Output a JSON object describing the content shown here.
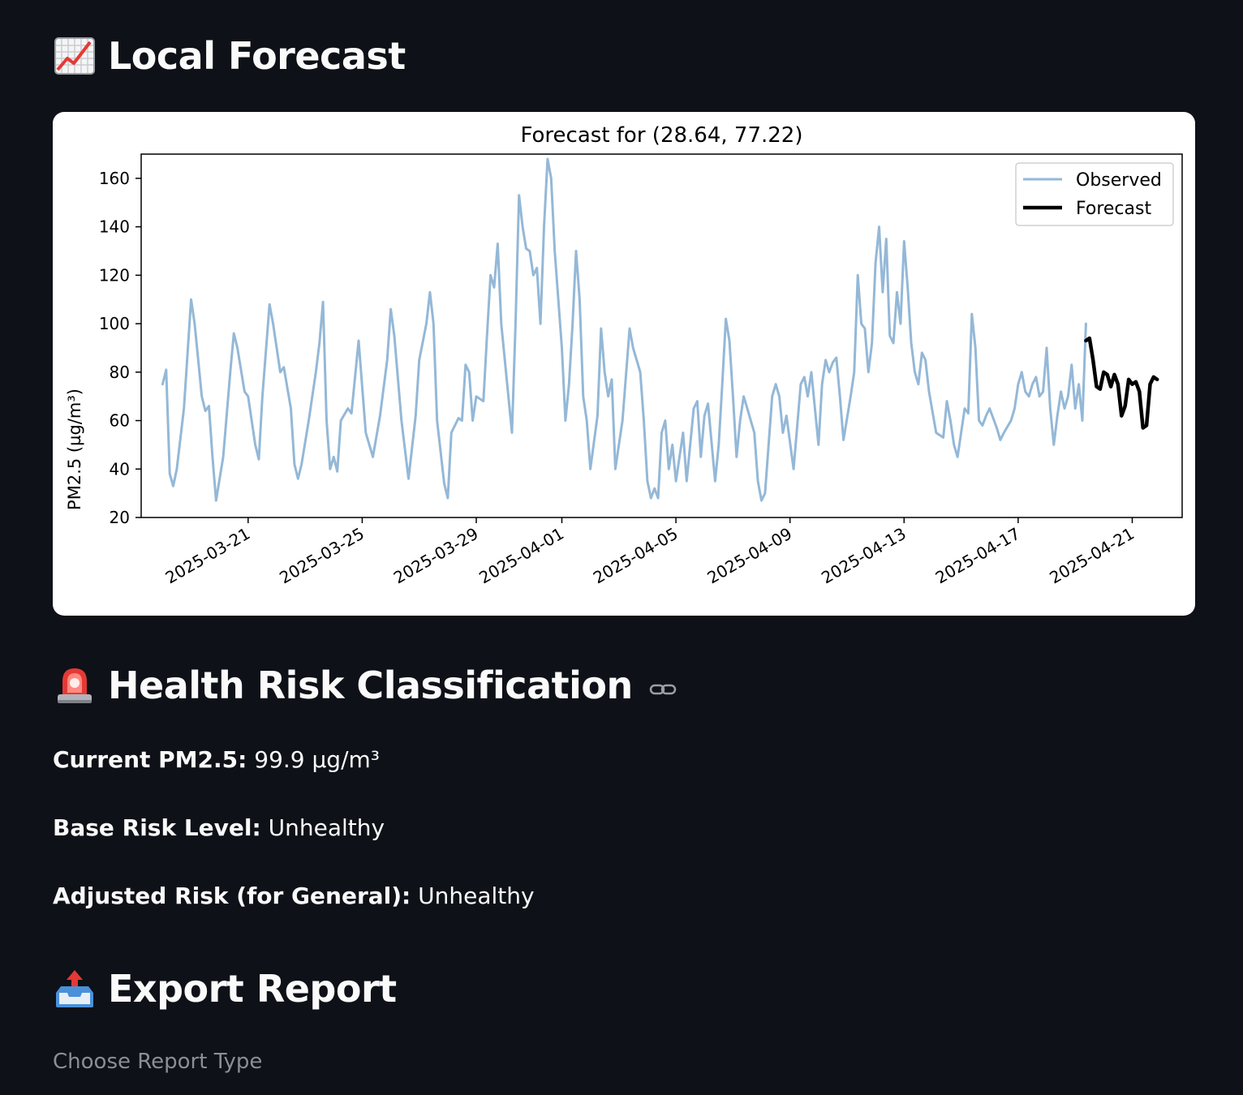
{
  "sections": {
    "forecast": {
      "icon": "chart-increasing-icon",
      "title": "Local Forecast"
    },
    "health": {
      "icon": "police-light-icon",
      "title": "Health Risk Classification",
      "anchor_icon": "link-icon"
    },
    "export": {
      "icon": "outbox-tray-icon",
      "title": "Export Report"
    }
  },
  "health_risk": {
    "current_label": "Current PM2.5:",
    "current_value": "99.9 µg/m³",
    "base_label": "Base Risk Level:",
    "base_value": "Unhealthy",
    "adjusted_label": "Adjusted Risk (for General):",
    "adjusted_value": "Unhealthy"
  },
  "export": {
    "report_type_label": "Choose Report Type"
  },
  "colors": {
    "observed": "#94b8d7",
    "forecast": "#000000",
    "background": "#0e1117",
    "card": "#ffffff"
  },
  "chart_data": {
    "type": "line",
    "title": "Forecast for (28.64, 77.22)",
    "ylabel": "PM2.5 (µg/m³)",
    "xlabel": "",
    "ylim": [
      20,
      170
    ],
    "xlim": [
      "2025-03-17T06:00",
      "2025-04-22T18:00"
    ],
    "yticks": [
      20,
      40,
      60,
      80,
      100,
      120,
      140,
      160
    ],
    "xticks": [
      "2025-03-21",
      "2025-03-25",
      "2025-03-29",
      "2025-04-01",
      "2025-04-05",
      "2025-04-09",
      "2025-04-13",
      "2025-04-17",
      "2025-04-21"
    ],
    "legend_position": "top-right",
    "grid": false,
    "series": [
      {
        "name": "Observed",
        "color": "#94b8d7",
        "points": [
          [
            "2025-03-18T00:00",
            75
          ],
          [
            "2025-03-18T03:00",
            81
          ],
          [
            "2025-03-18T06:00",
            38
          ],
          [
            "2025-03-18T09:00",
            33
          ],
          [
            "2025-03-18T12:00",
            40
          ],
          [
            "2025-03-18T18:00",
            65
          ],
          [
            "2025-03-19T00:00",
            110
          ],
          [
            "2025-03-19T03:00",
            100
          ],
          [
            "2025-03-19T09:00",
            70
          ],
          [
            "2025-03-19T12:00",
            64
          ],
          [
            "2025-03-19T15:00",
            66
          ],
          [
            "2025-03-19T18:00",
            45
          ],
          [
            "2025-03-19T21:00",
            27
          ],
          [
            "2025-03-20T03:00",
            45
          ],
          [
            "2025-03-20T09:00",
            80
          ],
          [
            "2025-03-20T12:00",
            96
          ],
          [
            "2025-03-20T15:00",
            90
          ],
          [
            "2025-03-20T21:00",
            72
          ],
          [
            "2025-03-21T00:00",
            70
          ],
          [
            "2025-03-21T06:00",
            50
          ],
          [
            "2025-03-21T09:00",
            44
          ],
          [
            "2025-03-21T12:00",
            70
          ],
          [
            "2025-03-21T18:00",
            108
          ],
          [
            "2025-03-21T21:00",
            100
          ],
          [
            "2025-03-22T03:00",
            80
          ],
          [
            "2025-03-22T06:00",
            82
          ],
          [
            "2025-03-22T12:00",
            65
          ],
          [
            "2025-03-22T15:00",
            42
          ],
          [
            "2025-03-22T18:00",
            36
          ],
          [
            "2025-03-22T21:00",
            42
          ],
          [
            "2025-03-23T03:00",
            60
          ],
          [
            "2025-03-23T09:00",
            80
          ],
          [
            "2025-03-23T12:00",
            92
          ],
          [
            "2025-03-23T15:00",
            109
          ],
          [
            "2025-03-23T18:00",
            60
          ],
          [
            "2025-03-23T21:00",
            40
          ],
          [
            "2025-03-24T00:00",
            45
          ],
          [
            "2025-03-24T03:00",
            39
          ],
          [
            "2025-03-24T06:00",
            60
          ],
          [
            "2025-03-24T12:00",
            65
          ],
          [
            "2025-03-24T15:00",
            63
          ],
          [
            "2025-03-24T21:00",
            93
          ],
          [
            "2025-03-25T03:00",
            55
          ],
          [
            "2025-03-25T09:00",
            45
          ],
          [
            "2025-03-25T15:00",
            62
          ],
          [
            "2025-03-25T21:00",
            85
          ],
          [
            "2025-03-26T00:00",
            106
          ],
          [
            "2025-03-26T03:00",
            95
          ],
          [
            "2025-03-26T09:00",
            60
          ],
          [
            "2025-03-26T15:00",
            36
          ],
          [
            "2025-03-26T21:00",
            62
          ],
          [
            "2025-03-27T00:00",
            85
          ],
          [
            "2025-03-27T06:00",
            100
          ],
          [
            "2025-03-27T09:00",
            113
          ],
          [
            "2025-03-27T12:00",
            100
          ],
          [
            "2025-03-27T15:00",
            60
          ],
          [
            "2025-03-27T21:00",
            34
          ],
          [
            "2025-03-28T00:00",
            28
          ],
          [
            "2025-03-28T03:00",
            55
          ],
          [
            "2025-03-28T09:00",
            61
          ],
          [
            "2025-03-28T12:00",
            60
          ],
          [
            "2025-03-28T15:00",
            83
          ],
          [
            "2025-03-28T18:00",
            80
          ],
          [
            "2025-03-28T21:00",
            60
          ],
          [
            "2025-03-29T00:00",
            70
          ],
          [
            "2025-03-29T06:00",
            68
          ],
          [
            "2025-03-29T09:00",
            95
          ],
          [
            "2025-03-29T12:00",
            120
          ],
          [
            "2025-03-29T15:00",
            115
          ],
          [
            "2025-03-29T18:00",
            133
          ],
          [
            "2025-03-29T21:00",
            100
          ],
          [
            "2025-03-30T03:00",
            70
          ],
          [
            "2025-03-30T06:00",
            55
          ],
          [
            "2025-03-30T09:00",
            100
          ],
          [
            "2025-03-30T12:00",
            153
          ],
          [
            "2025-03-30T15:00",
            140
          ],
          [
            "2025-03-30T18:00",
            131
          ],
          [
            "2025-03-30T21:00",
            130
          ],
          [
            "2025-03-31T00:00",
            120
          ],
          [
            "2025-03-31T03:00",
            123
          ],
          [
            "2025-03-31T06:00",
            100
          ],
          [
            "2025-03-31T09:00",
            140
          ],
          [
            "2025-03-31T12:00",
            168
          ],
          [
            "2025-03-31T15:00",
            160
          ],
          [
            "2025-03-31T18:00",
            130
          ],
          [
            "2025-03-31T21:00",
            110
          ],
          [
            "2025-04-01T00:00",
            90
          ],
          [
            "2025-04-01T03:00",
            60
          ],
          [
            "2025-04-01T06:00",
            75
          ],
          [
            "2025-04-01T09:00",
            100
          ],
          [
            "2025-04-01T12:00",
            130
          ],
          [
            "2025-04-01T15:00",
            110
          ],
          [
            "2025-04-01T18:00",
            70
          ],
          [
            "2025-04-01T21:00",
            60
          ],
          [
            "2025-04-02T00:00",
            40
          ],
          [
            "2025-04-02T06:00",
            62
          ],
          [
            "2025-04-02T09:00",
            98
          ],
          [
            "2025-04-02T12:00",
            80
          ],
          [
            "2025-04-02T15:00",
            70
          ],
          [
            "2025-04-02T18:00",
            77
          ],
          [
            "2025-04-02T21:00",
            40
          ],
          [
            "2025-04-03T03:00",
            60
          ],
          [
            "2025-04-03T09:00",
            98
          ],
          [
            "2025-04-03T12:00",
            90
          ],
          [
            "2025-04-03T15:00",
            85
          ],
          [
            "2025-04-03T18:00",
            80
          ],
          [
            "2025-04-03T21:00",
            60
          ],
          [
            "2025-04-04T00:00",
            35
          ],
          [
            "2025-04-04T03:00",
            28
          ],
          [
            "2025-04-04T06:00",
            32
          ],
          [
            "2025-04-04T09:00",
            28
          ],
          [
            "2025-04-04T12:00",
            55
          ],
          [
            "2025-04-04T15:00",
            60
          ],
          [
            "2025-04-04T18:00",
            40
          ],
          [
            "2025-04-04T21:00",
            50
          ],
          [
            "2025-04-05T00:00",
            35
          ],
          [
            "2025-04-05T03:00",
            45
          ],
          [
            "2025-04-05T06:00",
            55
          ],
          [
            "2025-04-05T09:00",
            35
          ],
          [
            "2025-04-05T15:00",
            65
          ],
          [
            "2025-04-05T18:00",
            68
          ],
          [
            "2025-04-05T21:00",
            45
          ],
          [
            "2025-04-06T00:00",
            62
          ],
          [
            "2025-04-06T03:00",
            67
          ],
          [
            "2025-04-06T09:00",
            35
          ],
          [
            "2025-04-06T12:00",
            50
          ],
          [
            "2025-04-06T15:00",
            75
          ],
          [
            "2025-04-06T18:00",
            102
          ],
          [
            "2025-04-06T21:00",
            93
          ],
          [
            "2025-04-07T00:00",
            70
          ],
          [
            "2025-04-07T03:00",
            45
          ],
          [
            "2025-04-07T06:00",
            60
          ],
          [
            "2025-04-07T09:00",
            70
          ],
          [
            "2025-04-07T12:00",
            65
          ],
          [
            "2025-04-07T18:00",
            55
          ],
          [
            "2025-04-07T21:00",
            35
          ],
          [
            "2025-04-08T00:00",
            27
          ],
          [
            "2025-04-08T03:00",
            30
          ],
          [
            "2025-04-08T09:00",
            70
          ],
          [
            "2025-04-08T12:00",
            75
          ],
          [
            "2025-04-08T15:00",
            70
          ],
          [
            "2025-04-08T18:00",
            55
          ],
          [
            "2025-04-08T21:00",
            62
          ],
          [
            "2025-04-09T03:00",
            40
          ],
          [
            "2025-04-09T09:00",
            75
          ],
          [
            "2025-04-09T12:00",
            78
          ],
          [
            "2025-04-09T15:00",
            70
          ],
          [
            "2025-04-09T18:00",
            80
          ],
          [
            "2025-04-09T21:00",
            65
          ],
          [
            "2025-04-10T00:00",
            50
          ],
          [
            "2025-04-10T03:00",
            75
          ],
          [
            "2025-04-10T06:00",
            85
          ],
          [
            "2025-04-10T09:00",
            80
          ],
          [
            "2025-04-10T12:00",
            84
          ],
          [
            "2025-04-10T15:00",
            86
          ],
          [
            "2025-04-10T18:00",
            70
          ],
          [
            "2025-04-10T21:00",
            52
          ],
          [
            "2025-04-11T03:00",
            70
          ],
          [
            "2025-04-11T06:00",
            80
          ],
          [
            "2025-04-11T09:00",
            120
          ],
          [
            "2025-04-11T12:00",
            100
          ],
          [
            "2025-04-11T15:00",
            98
          ],
          [
            "2025-04-11T18:00",
            80
          ],
          [
            "2025-04-11T21:00",
            92
          ],
          [
            "2025-04-12T00:00",
            125
          ],
          [
            "2025-04-12T03:00",
            140
          ],
          [
            "2025-04-12T06:00",
            113
          ],
          [
            "2025-04-12T09:00",
            135
          ],
          [
            "2025-04-12T12:00",
            95
          ],
          [
            "2025-04-12T15:00",
            92
          ],
          [
            "2025-04-12T18:00",
            113
          ],
          [
            "2025-04-12T21:00",
            100
          ],
          [
            "2025-04-13T00:00",
            134
          ],
          [
            "2025-04-13T03:00",
            115
          ],
          [
            "2025-04-13T06:00",
            92
          ],
          [
            "2025-04-13T09:00",
            80
          ],
          [
            "2025-04-13T12:00",
            75
          ],
          [
            "2025-04-13T15:00",
            88
          ],
          [
            "2025-04-13T18:00",
            85
          ],
          [
            "2025-04-13T21:00",
            72
          ],
          [
            "2025-04-14T03:00",
            55
          ],
          [
            "2025-04-14T09:00",
            53
          ],
          [
            "2025-04-14T12:00",
            68
          ],
          [
            "2025-04-14T15:00",
            60
          ],
          [
            "2025-04-14T18:00",
            50
          ],
          [
            "2025-04-14T21:00",
            45
          ],
          [
            "2025-04-15T03:00",
            65
          ],
          [
            "2025-04-15T06:00",
            63
          ],
          [
            "2025-04-15T09:00",
            104
          ],
          [
            "2025-04-15T12:00",
            90
          ],
          [
            "2025-04-15T15:00",
            60
          ],
          [
            "2025-04-15T18:00",
            58
          ],
          [
            "2025-04-15T21:00",
            62
          ],
          [
            "2025-04-16T00:00",
            65
          ],
          [
            "2025-04-16T06:00",
            57
          ],
          [
            "2025-04-16T09:00",
            52
          ],
          [
            "2025-04-16T12:00",
            55
          ],
          [
            "2025-04-16T18:00",
            60
          ],
          [
            "2025-04-16T21:00",
            65
          ],
          [
            "2025-04-17T00:00",
            75
          ],
          [
            "2025-04-17T03:00",
            80
          ],
          [
            "2025-04-17T06:00",
            72
          ],
          [
            "2025-04-17T09:00",
            70
          ],
          [
            "2025-04-17T12:00",
            75
          ],
          [
            "2025-04-17T15:00",
            78
          ],
          [
            "2025-04-17T18:00",
            70
          ],
          [
            "2025-04-17T21:00",
            72
          ],
          [
            "2025-04-18T00:00",
            90
          ],
          [
            "2025-04-18T03:00",
            65
          ],
          [
            "2025-04-18T06:00",
            50
          ],
          [
            "2025-04-18T09:00",
            62
          ],
          [
            "2025-04-18T12:00",
            72
          ],
          [
            "2025-04-18T15:00",
            65
          ],
          [
            "2025-04-18T18:00",
            70
          ],
          [
            "2025-04-18T21:00",
            83
          ],
          [
            "2025-04-19T00:00",
            65
          ],
          [
            "2025-04-19T03:00",
            75
          ],
          [
            "2025-04-19T06:00",
            60
          ],
          [
            "2025-04-19T09:00",
            100
          ]
        ]
      },
      {
        "name": "Forecast",
        "color": "#000000",
        "points": [
          [
            "2025-04-19T09:00",
            93
          ],
          [
            "2025-04-19T12:00",
            94
          ],
          [
            "2025-04-19T15:00",
            85
          ],
          [
            "2025-04-19T18:00",
            74
          ],
          [
            "2025-04-19T21:00",
            73
          ],
          [
            "2025-04-20T00:00",
            80
          ],
          [
            "2025-04-20T03:00",
            79
          ],
          [
            "2025-04-20T06:00",
            74
          ],
          [
            "2025-04-20T09:00",
            79
          ],
          [
            "2025-04-20T12:00",
            75
          ],
          [
            "2025-04-20T15:00",
            62
          ],
          [
            "2025-04-20T18:00",
            66
          ],
          [
            "2025-04-20T21:00",
            77
          ],
          [
            "2025-04-21T00:00",
            75
          ],
          [
            "2025-04-21T03:00",
            76
          ],
          [
            "2025-04-21T06:00",
            72
          ],
          [
            "2025-04-21T09:00",
            57
          ],
          [
            "2025-04-21T12:00",
            58
          ],
          [
            "2025-04-21T15:00",
            75
          ],
          [
            "2025-04-21T18:00",
            78
          ],
          [
            "2025-04-21T21:00",
            77
          ]
        ]
      }
    ]
  }
}
